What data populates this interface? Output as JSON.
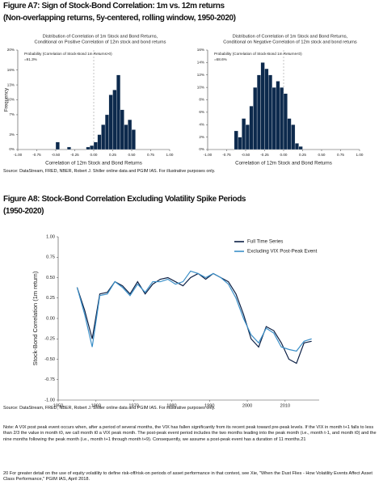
{
  "figure_a7": {
    "title": "Figure A7: Sign of Stock-Bond Correlation: 1m vs. 12m returns",
    "subtitle": "(Non-overlapping returns, 5y-centered, rolling window, 1950-2020)",
    "source": "Source: DataStream, FRED, NBER, Robert J. Shiller online data and PGIM IAS. For illustrative purposes only."
  },
  "figure_a8": {
    "title": "Figure A8: Stock-Bond Correlation Excluding Volatility Spike Periods",
    "subtitle": "(1950-2020)",
    "source": "Source: DataStream, FRED, NBER, Robert J. Shiller online data and PGIM IAS. For illustrative purposes only.",
    "note": "Note: A VIX post peak event occurs when, after a period of several months, the VIX has fallen significantly from its recent peak toward pre-peak levels. If the VIX in month t+1 falls to less than 2/3 the value in month t0, we call month t0 a VIX peak month. The post-peak event period includes the two months leading into the peak month (i.e., month t-1, and month t0) and the nine months following the peak month (i.e., month t+1 through month t+9). Consequently, we assume a post-peak event has a duration of 11 months.21"
  },
  "footnote": "20  For greater detail on the use of equity volatility to define risk-off/risk-on periods of asset performance in that context, see Xie, \"When the Dust Flies - How Volatility Events Affect Asset Class Performance,\" PGIM IAS, April 2018.",
  "chart_data": [
    {
      "type": "histogram",
      "title": "Distribution of Correlation of 1m Stock and Bond Returns,",
      "subtitle": "Conditional on Positive Correlation of 12m stock and bond returns",
      "annotation": [
        "Probability (Correlation of Stock-Bond 1m Returns>0)",
        "=91.3%"
      ],
      "xlabel": "Correlation of 12m Stock and Bond Returns",
      "ylabel": "Frequency",
      "color": "#0d2a4d",
      "bins": [
        -0.5,
        -0.45,
        -0.4,
        -0.35,
        -0.3,
        -0.25,
        -0.2,
        -0.15,
        -0.1,
        -0.05,
        0,
        0.05,
        0.1,
        0.15,
        0.2,
        0.25,
        0.3,
        0.35,
        0.4,
        0.45,
        0.5,
        0.55
      ],
      "counts": [
        1.5,
        0,
        0,
        0.5,
        0,
        0,
        0,
        0,
        0.5,
        0.8,
        1.5,
        3,
        5,
        7,
        11,
        12,
        15,
        8,
        5,
        6,
        4
      ],
      "xlim": [
        -1,
        1
      ],
      "xticks": [
        {
          "value": -1,
          "label": "-1.00"
        },
        {
          "value": -0.75,
          "label": "-0.75"
        },
        {
          "value": -0.5,
          "label": "-0.50"
        },
        {
          "value": -0.25,
          "label": "-0.25"
        },
        {
          "value": 0,
          "label": "0.00"
        },
        {
          "value": 0.25,
          "label": "0.25"
        },
        {
          "value": 0.5,
          "label": "0.50"
        },
        {
          "value": 0.75,
          "label": "0.75"
        },
        {
          "value": 1,
          "label": "1.00"
        }
      ],
      "ylim": [
        0,
        20
      ],
      "yticks": [
        {
          "value": 0,
          "label": "0%"
        },
        {
          "value": 3,
          "label": "3%"
        },
        {
          "value": 7,
          "label": "7%"
        },
        {
          "value": 10,
          "label": "10%"
        },
        {
          "value": 13,
          "label": "13%"
        },
        {
          "value": 16,
          "label": "16%"
        },
        {
          "value": 20,
          "label": "20%"
        }
      ]
    },
    {
      "type": "histogram",
      "title": "Distribution of Correlation of 1m Stock and Bond Returns,",
      "subtitle": "Conditional on Negative Correlation of 12m stock and bond returns",
      "annotation": [
        "Probability (Correlation of Stock-Bond 1m Returns<0)",
        "=68.6%"
      ],
      "xlabel": "Correlation of 12m Stock and Bond Returns",
      "color": "#0d2a4d",
      "bins": [
        -0.65,
        -0.6,
        -0.55,
        -0.5,
        -0.45,
        -0.4,
        -0.35,
        -0.3,
        -0.25,
        -0.2,
        -0.15,
        -0.1,
        -0.05,
        0,
        0.05,
        0.1,
        0.15,
        0.2,
        0.25
      ],
      "counts": [
        3,
        2,
        5,
        4,
        7,
        10,
        12,
        14,
        13,
        12,
        10,
        11,
        10,
        9,
        5,
        4,
        1,
        0.5
      ],
      "xlim": [
        -1,
        1
      ],
      "xticks": [
        {
          "value": -1,
          "label": "-1.00"
        },
        {
          "value": -0.75,
          "label": "-0.75"
        },
        {
          "value": -0.5,
          "label": "-0.50"
        },
        {
          "value": -0.25,
          "label": "-0.25"
        },
        {
          "value": 0,
          "label": "0.00"
        },
        {
          "value": 0.25,
          "label": "0.25"
        },
        {
          "value": 0.5,
          "label": "0.50"
        },
        {
          "value": 0.75,
          "label": "0.75"
        },
        {
          "value": 1,
          "label": "1.00"
        }
      ],
      "ylim": [
        0,
        16
      ],
      "yticks": [
        {
          "value": 0,
          "label": "0%"
        },
        {
          "value": 2,
          "label": "2%"
        },
        {
          "value": 4,
          "label": "4%"
        },
        {
          "value": 6,
          "label": "6%"
        },
        {
          "value": 8,
          "label": "8%"
        },
        {
          "value": 10,
          "label": "10%"
        },
        {
          "value": 12,
          "label": "12%"
        },
        {
          "value": 14,
          "label": "14%"
        },
        {
          "value": 16,
          "label": "16%"
        }
      ]
    },
    {
      "type": "line",
      "ylabel": "Stock-Bond Correlation (1m return)",
      "x": [
        1955,
        1957,
        1959,
        1961,
        1963,
        1965,
        1967,
        1969,
        1971,
        1973,
        1975,
        1977,
        1979,
        1981,
        1983,
        1985,
        1987,
        1989,
        1991,
        1993,
        1995,
        1997,
        1999,
        2001,
        2003,
        2005,
        2007,
        2009,
        2011,
        2013,
        2015,
        2017
      ],
      "series": [
        {
          "name": "Full Time Series",
          "color": "#0b1f45",
          "values": [
            0.38,
            0.1,
            -0.25,
            0.3,
            0.32,
            0.45,
            0.4,
            0.3,
            0.45,
            0.3,
            0.42,
            0.48,
            0.5,
            0.45,
            0.4,
            0.5,
            0.55,
            0.48,
            0.55,
            0.5,
            0.45,
            0.3,
            0.05,
            -0.25,
            -0.35,
            -0.1,
            -0.15,
            -0.3,
            -0.5,
            -0.55,
            -0.3,
            -0.28
          ]
        },
        {
          "name": "Excluding VIX Post-Peak Event",
          "color": "#3a8fc8",
          "values": [
            0.38,
            0.05,
            -0.35,
            0.28,
            0.3,
            0.45,
            0.38,
            0.28,
            0.42,
            0.32,
            0.45,
            0.45,
            0.48,
            0.42,
            0.45,
            0.58,
            0.55,
            0.5,
            0.55,
            0.5,
            0.42,
            0.25,
            0.0,
            -0.2,
            -0.3,
            -0.12,
            -0.18,
            -0.35,
            -0.38,
            -0.4,
            -0.28,
            -0.25
          ]
        }
      ],
      "xlim": [
        1950,
        2019
      ],
      "xticks": [
        1950,
        1960,
        1970,
        1980,
        1990,
        2000,
        2010
      ],
      "ylim": [
        -1,
        1
      ],
      "yticks": [
        {
          "value": -1,
          "label": "-1.00"
        },
        {
          "value": -0.75,
          "label": "-0.75"
        },
        {
          "value": -0.5,
          "label": "-0.50"
        },
        {
          "value": -0.25,
          "label": "-0.25"
        },
        {
          "value": 0,
          "label": "0.00"
        },
        {
          "value": 0.25,
          "label": "0.25"
        },
        {
          "value": 0.5,
          "label": "0.50"
        },
        {
          "value": 0.75,
          "label": "0.75"
        },
        {
          "value": 1,
          "label": "1.00"
        }
      ]
    }
  ]
}
